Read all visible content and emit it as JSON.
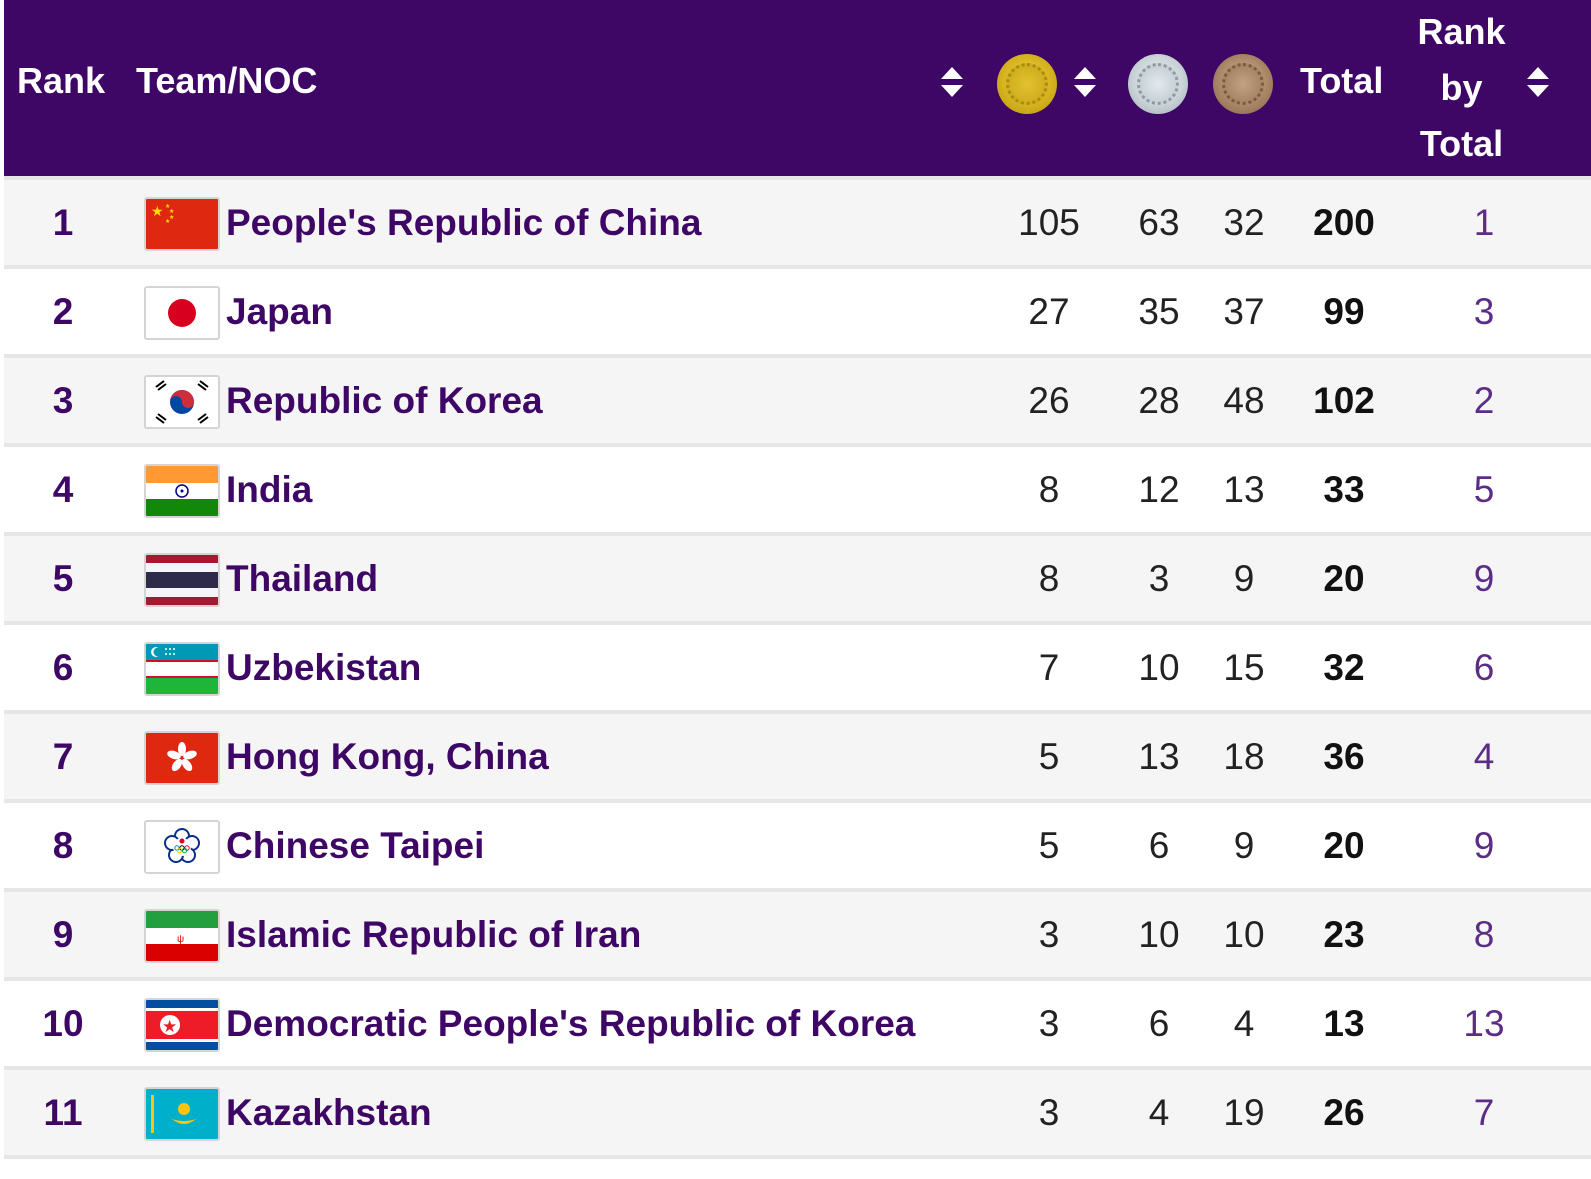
{
  "header": {
    "rank": "Rank",
    "team": "Team/NOC",
    "total": "Total",
    "rank_by_total": [
      "Rank",
      "by",
      "Total"
    ],
    "icons": [
      "sort-icon",
      "gold-medal-icon",
      "silver-medal-icon",
      "bronze-medal-icon"
    ]
  },
  "colors": {
    "header_bg": "#3e0766",
    "accent_text": "#3e0766",
    "row_alt": "#f5f5f5"
  },
  "rows": [
    {
      "rank": "1",
      "team": "People's Republic of China",
      "flag": "china-flag-icon",
      "gold": "105",
      "silver": "63",
      "bronze": "32",
      "total": "200",
      "rank_by_total": "1"
    },
    {
      "rank": "2",
      "team": "Japan",
      "flag": "japan-flag-icon",
      "gold": "27",
      "silver": "35",
      "bronze": "37",
      "total": "99",
      "rank_by_total": "3"
    },
    {
      "rank": "3",
      "team": "Republic of Korea",
      "flag": "korea-flag-icon",
      "gold": "26",
      "silver": "28",
      "bronze": "48",
      "total": "102",
      "rank_by_total": "2"
    },
    {
      "rank": "4",
      "team": "India",
      "flag": "india-flag-icon",
      "gold": "8",
      "silver": "12",
      "bronze": "13",
      "total": "33",
      "rank_by_total": "5"
    },
    {
      "rank": "5",
      "team": "Thailand",
      "flag": "thailand-flag-icon",
      "gold": "8",
      "silver": "3",
      "bronze": "9",
      "total": "20",
      "rank_by_total": "9"
    },
    {
      "rank": "6",
      "team": "Uzbekistan",
      "flag": "uzbekistan-flag-icon",
      "gold": "7",
      "silver": "10",
      "bronze": "15",
      "total": "32",
      "rank_by_total": "6"
    },
    {
      "rank": "7",
      "team": "Hong Kong, China",
      "flag": "hong-kong-flag-icon",
      "gold": "5",
      "silver": "13",
      "bronze": "18",
      "total": "36",
      "rank_by_total": "4"
    },
    {
      "rank": "8",
      "team": "Chinese Taipei",
      "flag": "chinese-taipei-flag-icon",
      "gold": "5",
      "silver": "6",
      "bronze": "9",
      "total": "20",
      "rank_by_total": "9"
    },
    {
      "rank": "9",
      "team": "Islamic Republic of Iran",
      "flag": "iran-flag-icon",
      "gold": "3",
      "silver": "10",
      "bronze": "10",
      "total": "23",
      "rank_by_total": "8"
    },
    {
      "rank": "10",
      "team": "Democratic People's Republic of Korea",
      "flag": "north-korea-flag-icon",
      "gold": "3",
      "silver": "6",
      "bronze": "4",
      "total": "13",
      "rank_by_total": "13"
    },
    {
      "rank": "11",
      "team": "Kazakhstan",
      "flag": "kazakhstan-flag-icon",
      "gold": "3",
      "silver": "4",
      "bronze": "19",
      "total": "26",
      "rank_by_total": "7"
    }
  ]
}
